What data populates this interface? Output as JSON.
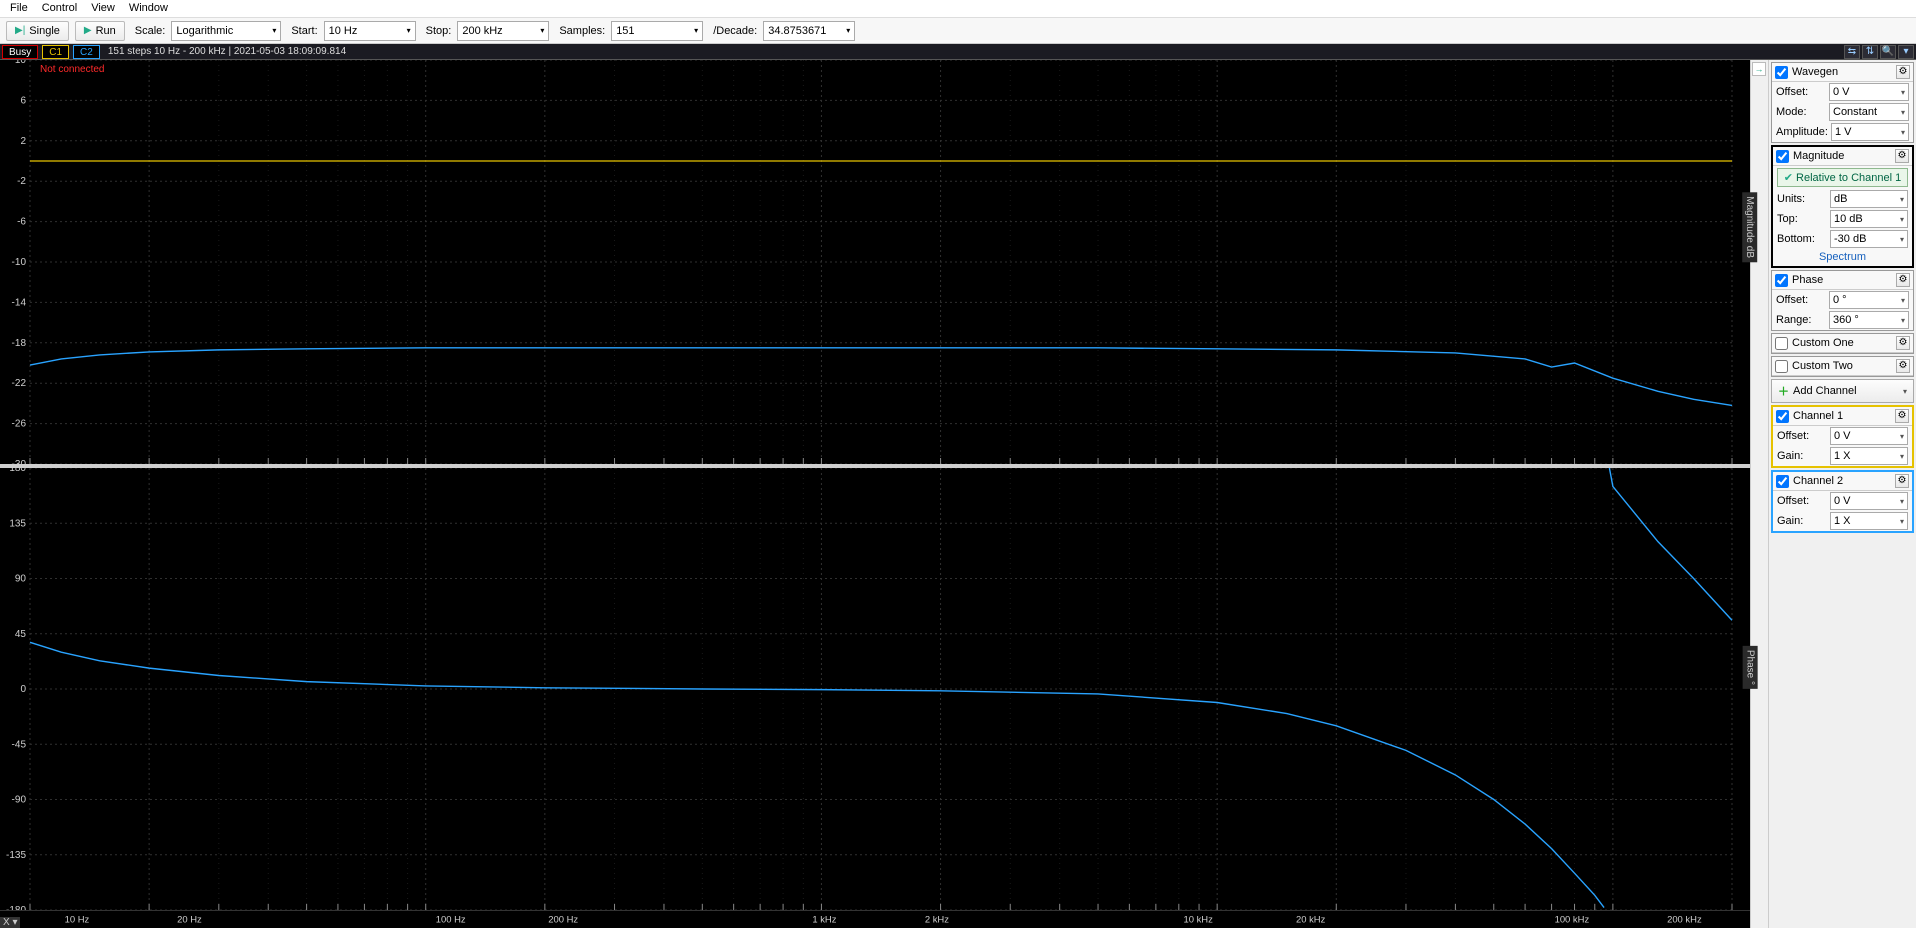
{
  "menu": {
    "file": "File",
    "control": "Control",
    "view": "View",
    "window": "Window"
  },
  "toolbar": {
    "single": "Single",
    "run": "Run",
    "scale_label": "Scale:",
    "scale_value": "Logarithmic",
    "start_label": "Start:",
    "start_value": "10 Hz",
    "stop_label": "Stop:",
    "stop_value": "200 kHz",
    "samples_label": "Samples:",
    "samples_value": "151",
    "perdec_label": "/Decade:",
    "perdec_value": "34.8753671"
  },
  "status": {
    "busy": "Busy",
    "c1": "C1",
    "c2": "C2",
    "info": "151 steps  10 Hz - 200 kHz | 2021-05-03 18:09:09.814",
    "not_connected": "Not connected"
  },
  "side": {
    "wavegen": {
      "title": "Wavegen",
      "offset_l": "Offset:",
      "offset_v": "0 V",
      "mode_l": "Mode:",
      "mode_v": "Constant",
      "amp_l": "Amplitude:",
      "amp_v": "1 V"
    },
    "magnitude": {
      "title": "Magnitude",
      "rel_btn": "Relative to Channel 1",
      "units_l": "Units:",
      "units_v": "dB",
      "top_l": "Top:",
      "top_v": "10 dB",
      "bot_l": "Bottom:",
      "bot_v": "-30 dB",
      "spectrum": "Spectrum"
    },
    "phase": {
      "title": "Phase",
      "offset_l": "Offset:",
      "offset_v": "0 °",
      "range_l": "Range:",
      "range_v": "360 °"
    },
    "custom1": "Custom One",
    "custom2": "Custom Two",
    "addch": "Add Channel",
    "ch1": {
      "title": "Channel 1",
      "offset_l": "Offset:",
      "offset_v": "0 V",
      "gain_l": "Gain:",
      "gain_v": "1 X"
    },
    "ch2": {
      "title": "Channel 2",
      "offset_l": "Offset:",
      "offset_v": "0 V",
      "gain_l": "Gain:",
      "gain_v": "1 X"
    }
  },
  "chart": {
    "mag_right_label": "Magnitude  dB",
    "phase_right_label": "Phase  °",
    "x_corner": "X ▾",
    "colors": {
      "bg": "#000000",
      "grid": "#303030",
      "c1": "#e6c200",
      "c2": "#29a3ff",
      "text": "#cfcfcf"
    },
    "mag": {
      "ylim": [
        -30,
        10
      ],
      "ytick_step": 4,
      "y_ticks": [
        10,
        6,
        2,
        -2,
        -6,
        -10,
        -14,
        -18,
        -22,
        -26,
        -30
      ],
      "c1_level_db": 0,
      "c2_points_db": [
        [
          10,
          -20.2
        ],
        [
          12,
          -19.6
        ],
        [
          15,
          -19.2
        ],
        [
          20,
          -18.9
        ],
        [
          30,
          -18.7
        ],
        [
          50,
          -18.6
        ],
        [
          100,
          -18.5
        ],
        [
          200,
          -18.5
        ],
        [
          500,
          -18.5
        ],
        [
          1000,
          -18.5
        ],
        [
          2000,
          -18.5
        ],
        [
          5000,
          -18.5
        ],
        [
          10000,
          -18.6
        ],
        [
          20000,
          -18.7
        ],
        [
          40000,
          -19.0
        ],
        [
          60000,
          -19.6
        ],
        [
          70000,
          -20.4
        ],
        [
          80000,
          -20.0
        ],
        [
          100000,
          -21.5
        ],
        [
          130000,
          -22.8
        ],
        [
          160000,
          -23.6
        ],
        [
          200000,
          -24.2
        ]
      ]
    },
    "phase": {
      "ylim": [
        -180,
        180
      ],
      "ytick_step": 45,
      "y_ticks": [
        180,
        135,
        90,
        45,
        0,
        -45,
        -90,
        -135,
        -180
      ],
      "c2_points_deg": [
        [
          10,
          38
        ],
        [
          12,
          30
        ],
        [
          15,
          23
        ],
        [
          20,
          17
        ],
        [
          30,
          11
        ],
        [
          50,
          6
        ],
        [
          100,
          2.5
        ],
        [
          200,
          1
        ],
        [
          500,
          0
        ],
        [
          1000,
          -0.5
        ],
        [
          2000,
          -1.5
        ],
        [
          5000,
          -4
        ],
        [
          10000,
          -11
        ],
        [
          15000,
          -20
        ],
        [
          20000,
          -30
        ],
        [
          30000,
          -50
        ],
        [
          40000,
          -70
        ],
        [
          50000,
          -90
        ],
        [
          60000,
          -110
        ],
        [
          70000,
          -130
        ],
        [
          80000,
          -150
        ],
        [
          90000,
          -168
        ],
        [
          95000,
          -178
        ],
        [
          98000,
          180
        ],
        [
          100000,
          165
        ],
        [
          130000,
          120
        ],
        [
          160000,
          90
        ],
        [
          200000,
          56
        ]
      ],
      "wrap_at_hz": 97000
    },
    "x": {
      "min_hz": 10,
      "max_hz": 200000,
      "major_ticks": [
        {
          "hz": 10,
          "label": "10 Hz"
        },
        {
          "hz": 20,
          "label": "20 Hz"
        },
        {
          "hz": 100,
          "label": "100 Hz"
        },
        {
          "hz": 200,
          "label": "200 Hz"
        },
        {
          "hz": 1000,
          "label": "1 kHz"
        },
        {
          "hz": 2000,
          "label": "2 kHz"
        },
        {
          "hz": 10000,
          "label": "10 kHz"
        },
        {
          "hz": 20000,
          "label": "20 kHz"
        },
        {
          "hz": 100000,
          "label": "100 kHz"
        },
        {
          "hz": 200000,
          "label": "200 kHz"
        }
      ]
    }
  }
}
